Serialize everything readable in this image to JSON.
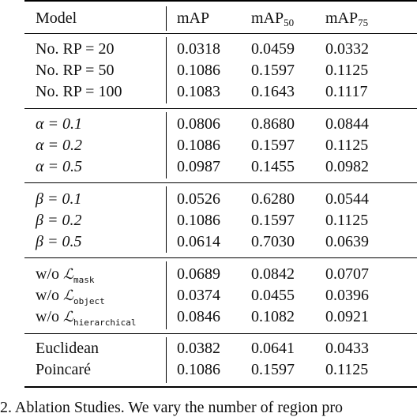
{
  "header": {
    "model": "Model",
    "map": "mAP",
    "map50_base": "mAP",
    "map50_sub": "50",
    "map75_base": "mAP",
    "map75_sub": "75"
  },
  "groups": [
    {
      "rows": [
        {
          "label": "No. RP = 20",
          "v1": "0.0318",
          "v2": "0.0459",
          "v3": "0.0332"
        },
        {
          "label": "No. RP = 50",
          "v1": "0.1086",
          "v2": "0.1597",
          "v3": "0.1125"
        },
        {
          "label": "No. RP = 100",
          "v1": "0.1083",
          "v2": "0.1643",
          "v3": "0.1117"
        }
      ]
    },
    {
      "rows": [
        {
          "label": "α = 0.1",
          "v1": "0.0806",
          "v2": "0.8680",
          "v3": "0.0844"
        },
        {
          "label": "α = 0.2",
          "v1": "0.1086",
          "v2": "0.1597",
          "v3": "0.1125"
        },
        {
          "label": "α = 0.5",
          "v1": "0.0987",
          "v2": "0.1455",
          "v3": "0.0982"
        }
      ]
    },
    {
      "rows": [
        {
          "label": "β = 0.1",
          "v1": "0.0526",
          "v2": "0.6280",
          "v3": "0.0544"
        },
        {
          "label": "β = 0.2",
          "v1": "0.1086",
          "v2": "0.1597",
          "v3": "0.1125"
        },
        {
          "label": "β = 0.5",
          "v1": "0.0614",
          "v2": "0.7030",
          "v3": "0.0639"
        }
      ]
    },
    {
      "rows": [
        {
          "prefix": "w/o",
          "cal": "ℒ",
          "sub": "mask",
          "v1": "0.0689",
          "v2": "0.0842",
          "v3": "0.0707"
        },
        {
          "prefix": "w/o",
          "cal": "ℒ",
          "sub": "object",
          "v1": "0.0374",
          "v2": "0.0455",
          "v3": "0.0396"
        },
        {
          "prefix": "w/o",
          "cal": "ℒ",
          "sub": "hierarchical",
          "v1": "0.0846",
          "v2": "0.1082",
          "v3": "0.0921"
        }
      ]
    },
    {
      "rows": [
        {
          "label": "Euclidean",
          "v1": "0.0382",
          "v2": "0.0641",
          "v3": "0.0433"
        },
        {
          "label": "Poincaré",
          "v1": "0.1086",
          "v2": "0.1597",
          "v3": "0.1125"
        }
      ]
    }
  ],
  "caption": "2. Ablation Studies. We vary the number of region pro"
}
